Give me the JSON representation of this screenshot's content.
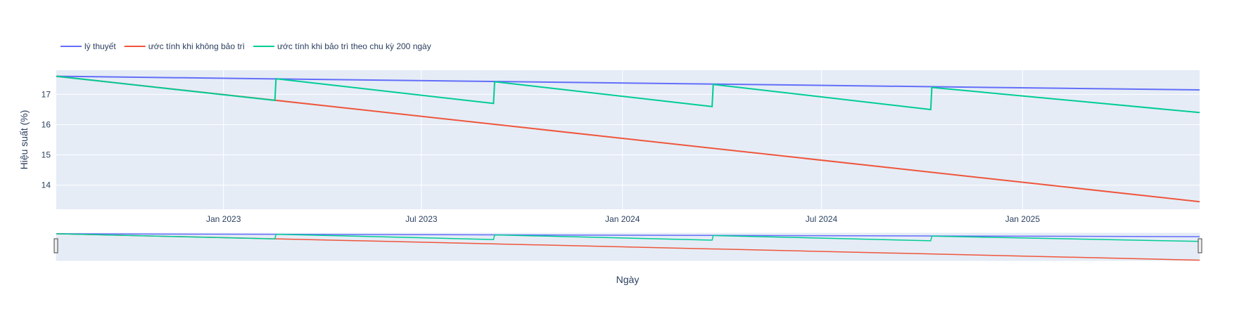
{
  "chart_data": {
    "type": "line",
    "title": "",
    "xlabel": "Ngày",
    "ylabel": "Hiệu suất (%)",
    "xrange": [
      "2022-08-01",
      "2025-06-12"
    ],
    "ylim": [
      13.2,
      17.8
    ],
    "ylim_rangeslider": [
      13.4,
      17.7
    ],
    "x_ticks": [
      {
        "date": "2023-01-01",
        "label": "Jan 2023"
      },
      {
        "date": "2023-07-01",
        "label": "Jul 2023"
      },
      {
        "date": "2024-01-01",
        "label": "Jan 2024"
      },
      {
        "date": "2024-07-01",
        "label": "Jul 2024"
      },
      {
        "date": "2025-01-01",
        "label": "Jan 2025"
      }
    ],
    "y_ticks": [
      14,
      15,
      16,
      17
    ],
    "legend_position": "top-left",
    "series": [
      {
        "name": "lý thuyết",
        "color": "#636efa",
        "points": [
          {
            "x": "2022-08-01",
            "y": 17.6
          },
          {
            "x": "2025-06-12",
            "y": 17.15
          }
        ]
      },
      {
        "name": "ước tính khi không bảo trì",
        "color": "#ef553b",
        "points": [
          {
            "x": "2022-08-01",
            "y": 17.6
          },
          {
            "x": "2025-06-12",
            "y": 13.45
          }
        ]
      },
      {
        "name": "ước tính khi bảo trì theo chu kỳ 200 ngày",
        "color": "#00cc96",
        "points": [
          {
            "x": "2022-08-01",
            "y": 17.6
          },
          {
            "x": "2023-02-17",
            "y": 16.8
          },
          {
            "x": "2023-02-18",
            "y": 17.52
          },
          {
            "x": "2023-09-05",
            "y": 16.7
          },
          {
            "x": "2023-09-06",
            "y": 17.42
          },
          {
            "x": "2024-03-23",
            "y": 16.6
          },
          {
            "x": "2024-03-24",
            "y": 17.33
          },
          {
            "x": "2024-10-09",
            "y": 16.5
          },
          {
            "x": "2024-10-10",
            "y": 17.23
          },
          {
            "x": "2025-06-12",
            "y": 16.4
          }
        ]
      }
    ]
  }
}
